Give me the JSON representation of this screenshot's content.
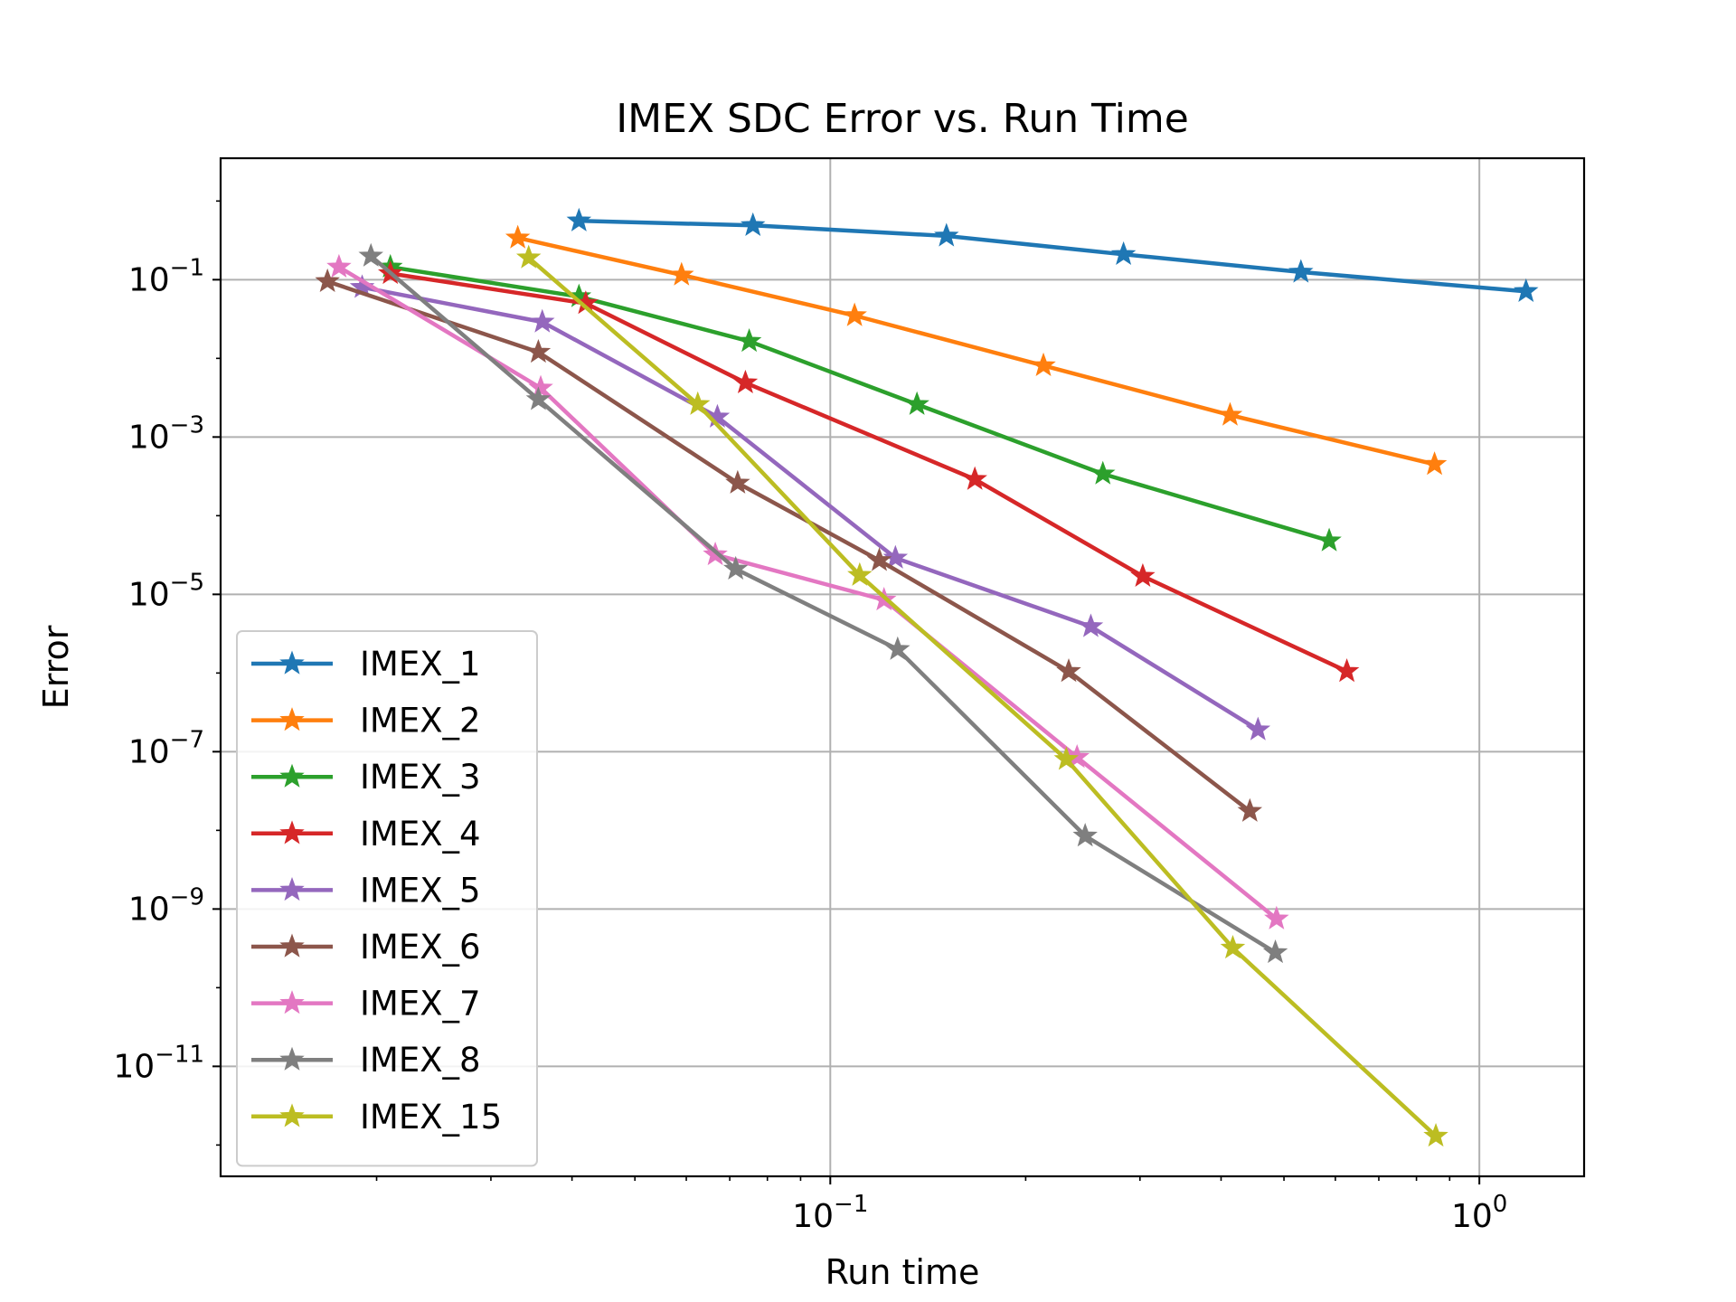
{
  "chart_data": {
    "type": "line",
    "title": "IMEX SDC Error vs. Run Time",
    "xlabel": "Run time",
    "ylabel": "Error",
    "xscale": "log",
    "yscale": "log",
    "xlim": [
      0.0115,
      1.45
    ],
    "ylim": [
      4e-13,
      3.5
    ],
    "grid": true,
    "legend_position": "lower-left",
    "marker": "star",
    "x_tick_labels": [
      {
        "value": 0.1,
        "base": "10",
        "exp": "−1"
      },
      {
        "value": 1,
        "base": "10",
        "exp": "0"
      }
    ],
    "y_tick_labels": [
      {
        "value": 0.1,
        "base": "10",
        "exp": "−1"
      },
      {
        "value": 0.001,
        "base": "10",
        "exp": "−3"
      },
      {
        "value": 1e-05,
        "base": "10",
        "exp": "−5"
      },
      {
        "value": 1e-07,
        "base": "10",
        "exp": "−7"
      },
      {
        "value": 1e-09,
        "base": "10",
        "exp": "−9"
      },
      {
        "value": 1e-11,
        "base": "10",
        "exp": "−11"
      }
    ],
    "series": [
      {
        "name": "IMEX_1",
        "color": "#1f77b4",
        "x": [
          0.041,
          0.076,
          0.151,
          0.283,
          0.531,
          1.18
        ],
        "y": [
          0.56,
          0.49,
          0.36,
          0.21,
          0.125,
          0.071
        ]
      },
      {
        "name": "IMEX_2",
        "color": "#ff7f0e",
        "x": [
          0.033,
          0.059,
          0.109,
          0.213,
          0.413,
          0.853
        ],
        "y": [
          0.34,
          0.115,
          0.035,
          0.0081,
          0.0019,
          0.00045
        ]
      },
      {
        "name": "IMEX_3",
        "color": "#2ca02c",
        "x": [
          0.021,
          0.041,
          0.075,
          0.136,
          0.263,
          0.587
        ],
        "y": [
          0.145,
          0.061,
          0.0165,
          0.0026,
          0.00034,
          4.8e-05
        ]
      },
      {
        "name": "IMEX_4",
        "color": "#d62728",
        "x": [
          0.021,
          0.042,
          0.074,
          0.167,
          0.303,
          0.625
        ],
        "y": [
          0.12,
          0.05,
          0.0049,
          0.00029,
          1.7e-05,
          1.05e-06
        ]
      },
      {
        "name": "IMEX_5",
        "color": "#9467bd",
        "x": [
          0.019,
          0.036,
          0.067,
          0.126,
          0.252,
          0.456
        ],
        "y": [
          0.08,
          0.029,
          0.0018,
          2.9e-05,
          3.9e-06,
          1.9e-07
        ]
      },
      {
        "name": "IMEX_6",
        "color": "#8c564b",
        "x": [
          0.0168,
          0.0355,
          0.072,
          0.119,
          0.233,
          0.443
        ],
        "y": [
          0.095,
          0.012,
          0.00026,
          2.7e-05,
          1.05e-06,
          1.75e-08
        ]
      },
      {
        "name": "IMEX_7",
        "color": "#e377c2",
        "x": [
          0.0175,
          0.0358,
          0.0665,
          0.121,
          0.24,
          0.487
        ],
        "y": [
          0.145,
          0.0042,
          3.2e-05,
          8.5e-06,
          8.5e-08,
          7.5e-10
        ]
      },
      {
        "name": "IMEX_8",
        "color": "#7f7f7f",
        "x": [
          0.0196,
          0.0355,
          0.0715,
          0.127,
          0.247,
          0.485
        ],
        "y": [
          0.2,
          0.003,
          2.1e-05,
          2e-06,
          8.5e-09,
          2.8e-10
        ]
      },
      {
        "name": "IMEX_15",
        "color": "#bcbd22",
        "x": [
          0.0343,
          0.0625,
          0.111,
          0.231,
          0.417,
          0.857
        ],
        "y": [
          0.19,
          0.0026,
          1.75e-05,
          8e-08,
          3.2e-10,
          1.3e-12
        ]
      }
    ]
  }
}
